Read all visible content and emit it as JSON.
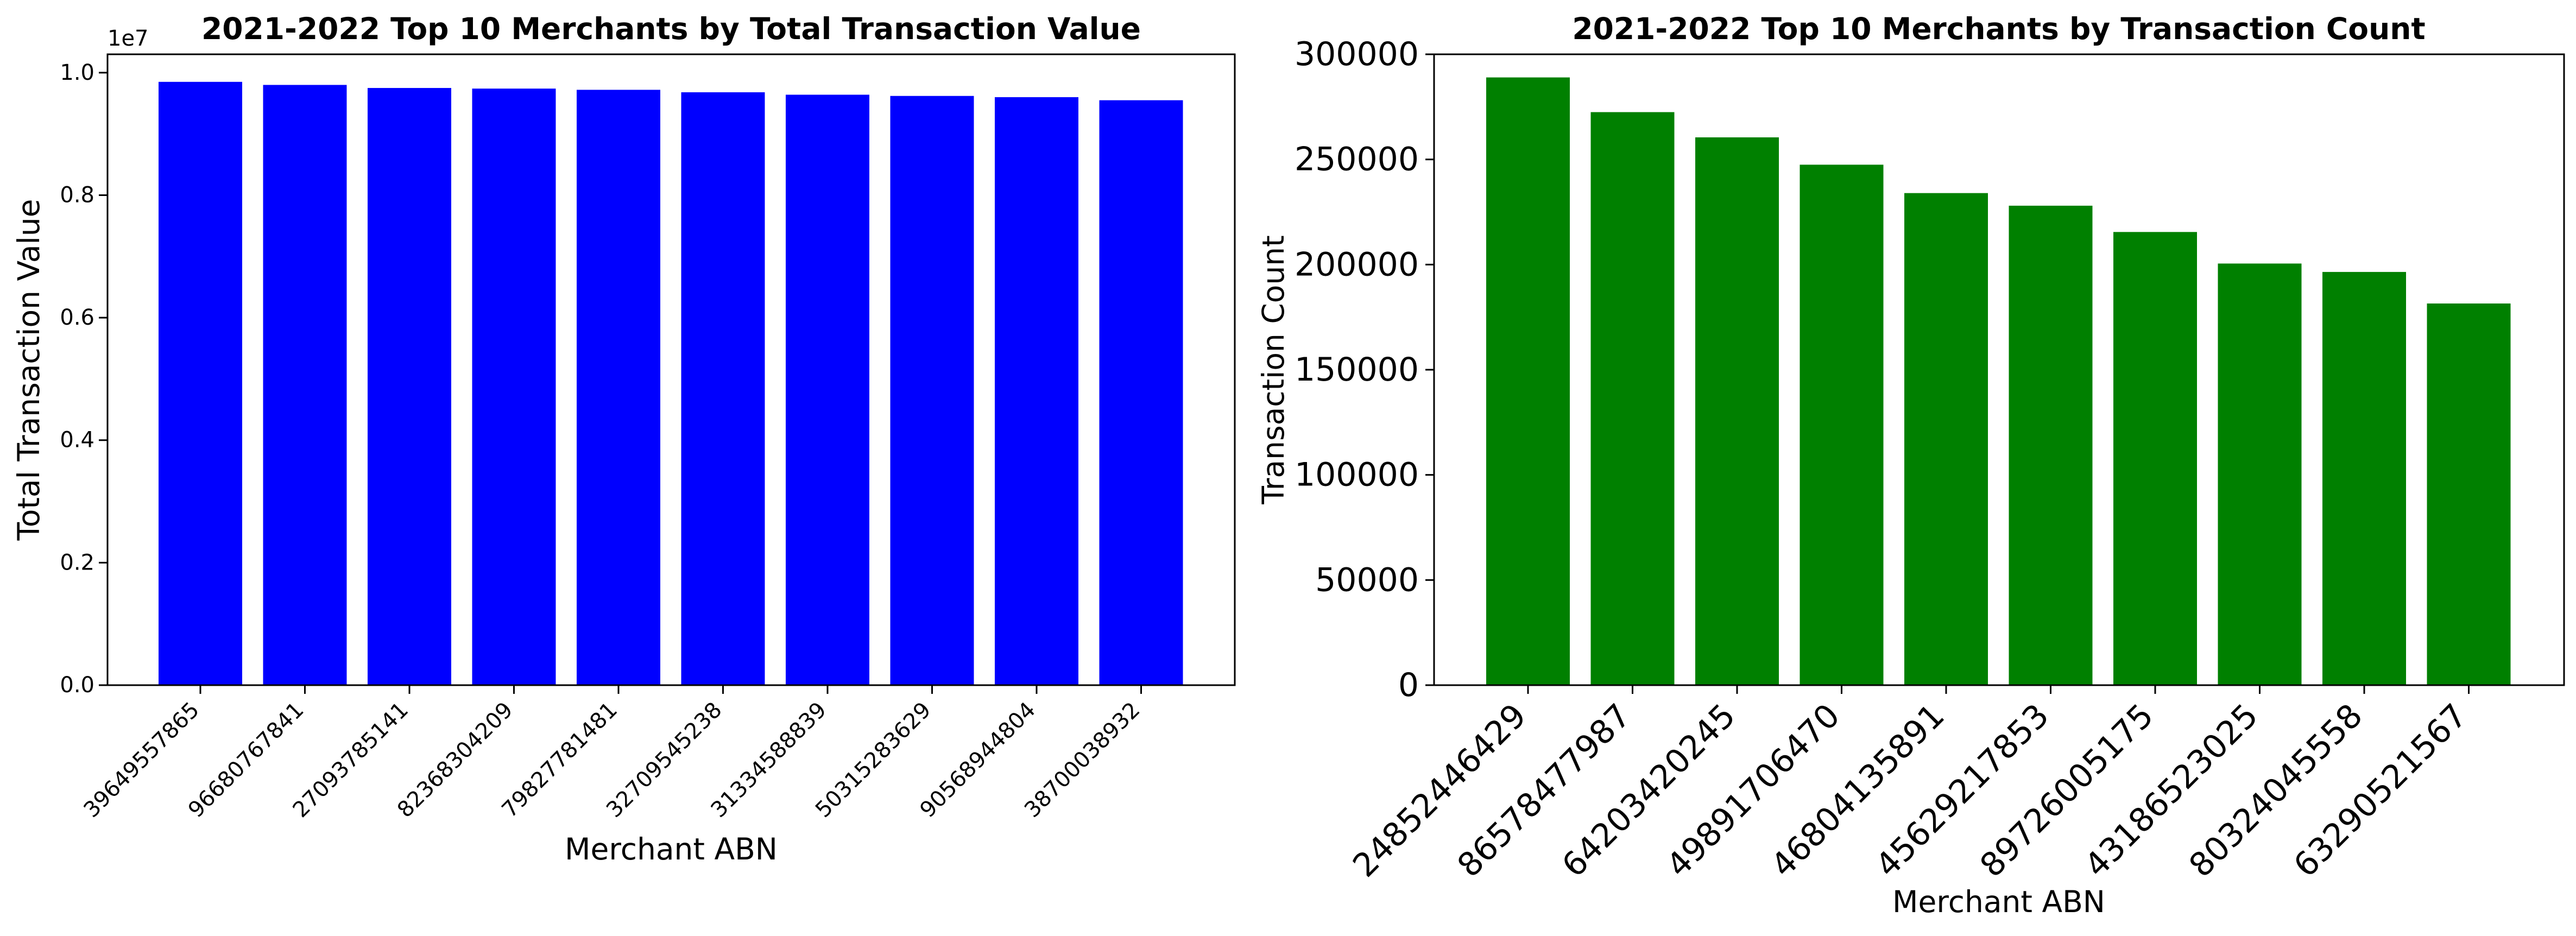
{
  "chart_data": [
    {
      "type": "bar",
      "title": "2021-2022 Top 10 Merchants by Total Transaction Value",
      "xlabel": "Merchant ABN",
      "ylabel": "Total Transaction Value",
      "y_offset_label": "1e7",
      "ylim": [
        0,
        1.03
      ],
      "y_ticks": [
        "0.0",
        "0.2",
        "0.4",
        "0.6",
        "0.8",
        "1.0"
      ],
      "grid": false,
      "color": "#0000ff",
      "categories": [
        "39649557865",
        "96680767841",
        "27093785141",
        "82368304209",
        "79827781481",
        "32709545238",
        "31334588839",
        "50315283629",
        "90568944804",
        "38700038932"
      ],
      "values": [
        0.985,
        0.98,
        0.975,
        0.974,
        0.972,
        0.968,
        0.964,
        0.962,
        0.96,
        0.955
      ]
    },
    {
      "type": "bar",
      "title": "2021-2022 Top 10 Merchants by Transaction Count",
      "xlabel": "Merchant ABN",
      "ylabel": "Transaction Count",
      "ylim": [
        0,
        300000
      ],
      "y_ticks": [
        "0",
        "50000",
        "100000",
        "150000",
        "200000",
        "250000",
        "300000"
      ],
      "grid": false,
      "color": "#008000",
      "categories": [
        "24852446429",
        "86578477987",
        "64203420245",
        "49891706470",
        "46804135891",
        "45629217853",
        "89726005175",
        "43186523025",
        "80324045558",
        "63290521567"
      ],
      "values": [
        289000,
        272500,
        260500,
        247500,
        234000,
        228000,
        215500,
        200500,
        196500,
        181500
      ]
    }
  ]
}
